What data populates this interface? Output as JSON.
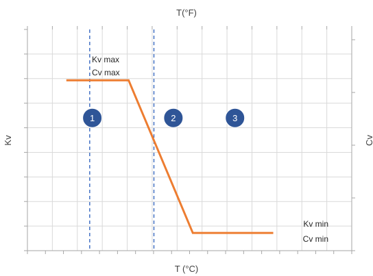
{
  "chart_data": {
    "type": "line",
    "x_top_label": "T(°F)",
    "x_bottom_label": "T (°C)",
    "y_left_label": "Kv",
    "y_right_label": "Cv",
    "x_range": [
      0,
      10
    ],
    "y_range": [
      0,
      10
    ],
    "grid": true,
    "series": [
      {
        "color": "#ED7D31",
        "points": [
          [
            0.0,
            7.7
          ],
          [
            1.92,
            7.7
          ],
          [
            3.9,
            0.8
          ],
          [
            6.38,
            0.8
          ]
        ]
      }
    ],
    "dashed_markers_x": [
      1.92,
      3.9
    ],
    "dashed_color": "#4472C4",
    "annotations": {
      "max": [
        "Kv max",
        "Cv max"
      ],
      "min": [
        "Kv min",
        "Cv min"
      ]
    },
    "regions": [
      {
        "label": "1",
        "x": 0.8,
        "y": 6.0
      },
      {
        "label": "2",
        "x": 3.3,
        "y": 6.0
      },
      {
        "label": "3",
        "x": 5.2,
        "y": 6.0
      }
    ],
    "region_color": "#2F5597"
  }
}
